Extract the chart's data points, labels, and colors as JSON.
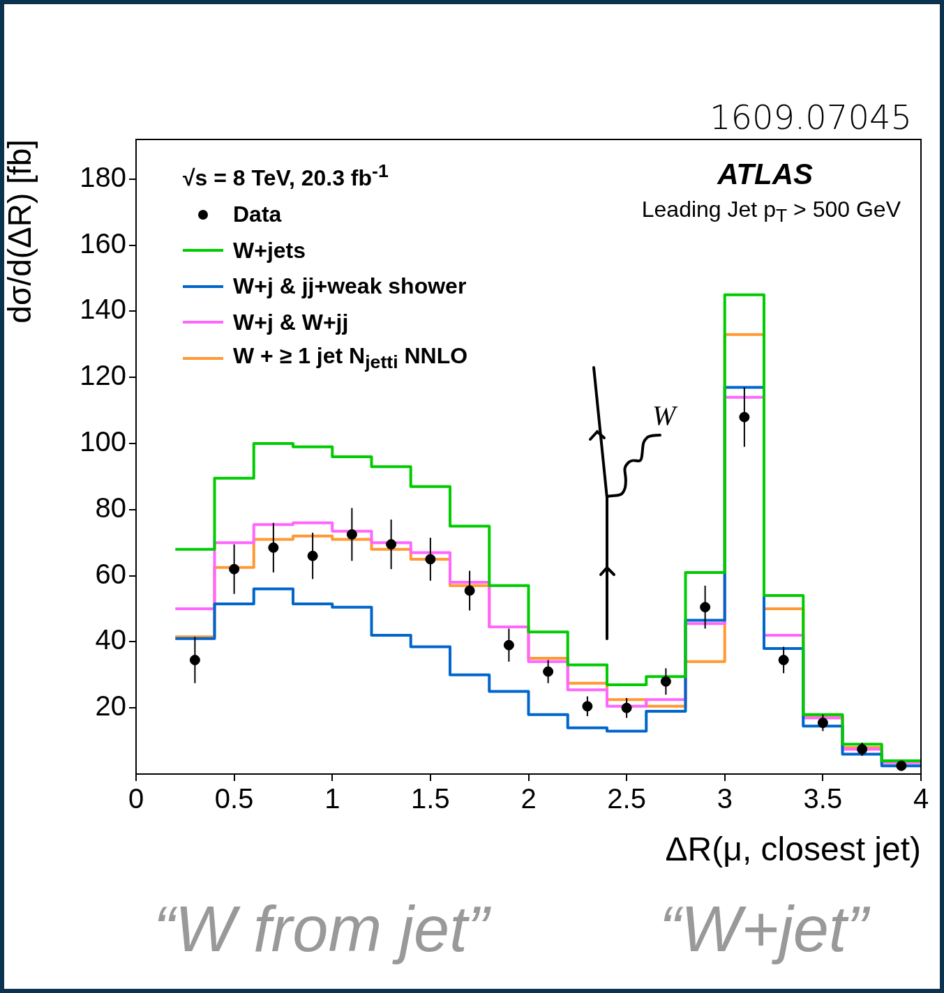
{
  "chart_data": {
    "type": "histogram",
    "xlabel": "ΔR(μ, closest jet)",
    "ylabel": "dσ/d(ΔR) [fb]",
    "annotations": [
      "1609.07045",
      "√s = 8 TeV, 20.3 fb$^{-1}$",
      "ATLAS",
      "Leading Jet p$_{T}$ > 500 GeV",
      "W",
      "“W from jet”",
      "“W+jet”"
    ],
    "bins": [
      0.2,
      0.4,
      0.6,
      0.8,
      1.0,
      1.2,
      1.4,
      1.6,
      1.8,
      2.0,
      2.2,
      2.4,
      2.6,
      2.8,
      3.0,
      3.2,
      3.4,
      3.6,
      3.8,
      4.0
    ],
    "series": [
      {
        "name": "Data",
        "type": "scatter",
        "color": "#000000",
        "x": [
          0.3,
          0.5,
          0.7,
          0.9,
          1.1,
          1.3,
          1.5,
          1.7,
          1.9,
          2.1,
          2.3,
          2.5,
          2.7,
          2.9,
          3.1,
          3.3,
          3.5,
          3.7,
          3.9
        ],
        "values": [
          34.5,
          62,
          68.5,
          66,
          72.5,
          69.5,
          65,
          55.5,
          39,
          31,
          20.5,
          20,
          28,
          50.5,
          108,
          34.5,
          15.5,
          7.5,
          2.5
        ],
        "errors": [
          7,
          7.5,
          7.5,
          7,
          8,
          7.5,
          6.5,
          6,
          5,
          3.5,
          3,
          3,
          4,
          6.5,
          9,
          4,
          2.5,
          2,
          1
        ]
      },
      {
        "name": "W+jets",
        "type": "histogram",
        "color": "#00cc00",
        "values": [
          68,
          89.5,
          100,
          99,
          96,
          93,
          87,
          75,
          57,
          43,
          33,
          27,
          29.5,
          61,
          145,
          54,
          18,
          9,
          4
        ]
      },
      {
        "name": "W+j & jj+weak shower",
        "type": "histogram",
        "color": "#0066cc",
        "values": [
          41,
          51.5,
          56,
          51.5,
          50.5,
          42,
          38.5,
          30,
          25,
          18,
          14,
          13,
          19,
          46.5,
          117,
          38,
          14.5,
          6,
          2.5
        ]
      },
      {
        "name": "W+j & W+jj",
        "type": "histogram",
        "color": "#ff66ff",
        "values": [
          50,
          70,
          75.5,
          76,
          73.5,
          70,
          67,
          58,
          44.5,
          34,
          25.5,
          20.5,
          22.5,
          45.5,
          114,
          42,
          17,
          7.5,
          3.5
        ]
      },
      {
        "name": "W + ≥ 1 jet N$_{jetti}$ NNLO",
        "type": "histogram",
        "color": "#ff9933",
        "values": [
          41.5,
          62.5,
          71,
          72,
          71,
          68,
          65,
          57,
          44.5,
          35,
          27.5,
          22.5,
          20.5,
          34,
          133,
          50,
          17.5,
          8,
          3.5
        ]
      }
    ],
    "xlim": [
      0,
      4
    ],
    "ylim": [
      0,
      192
    ],
    "xticks": [
      0,
      0.5,
      1,
      1.5,
      2,
      2.5,
      3,
      3.5,
      4
    ],
    "yticks": [
      20,
      40,
      60,
      80,
      100,
      120,
      140,
      160,
      180
    ],
    "legend": "top left",
    "marker": "circle"
  }
}
